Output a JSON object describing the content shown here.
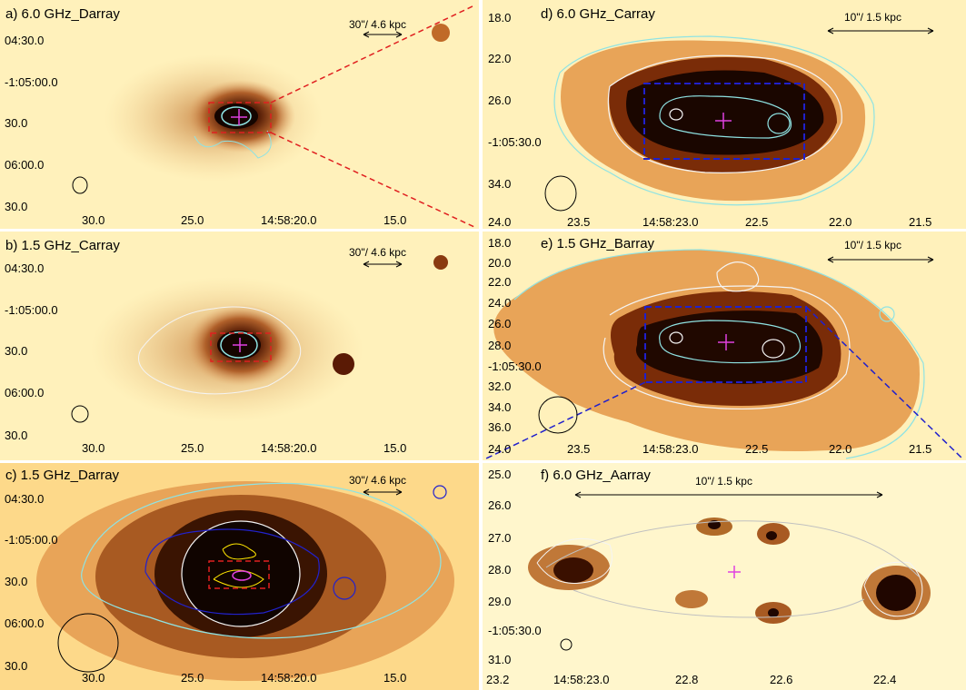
{
  "panels": {
    "a": {
      "title": "a) 6.0 GHz_Darray",
      "scalebar": "30\"/ 4.6 kpc",
      "yticks": [
        "04:30.0",
        "-1:05:00.0",
        "30.0",
        "06:00.0",
        "30.0"
      ],
      "xticks": [
        "30.0",
        "25.0",
        "14:58:20.0",
        "15.0"
      ]
    },
    "b": {
      "title": "b) 1.5 GHz_Carray",
      "scalebar": "30\"/ 4.6 kpc",
      "yticks": [
        "04:30.0",
        "-1:05:00.0",
        "30.0",
        "06:00.0",
        "30.0"
      ],
      "xticks": [
        "30.0",
        "25.0",
        "14:58:20.0",
        "15.0"
      ]
    },
    "c": {
      "title": "c) 1.5 GHz_Darray",
      "scalebar": "30\"/ 4.6 kpc",
      "yticks": [
        "04:30.0",
        "-1:05:00.0",
        "30.0",
        "06:00.0",
        "30.0"
      ],
      "xticks": [
        "30.0",
        "25.0",
        "14:58:20.0",
        "15.0"
      ]
    },
    "d": {
      "title": "d) 6.0 GHz_Carray",
      "scalebar": "10\"/ 1.5 kpc",
      "yticks": [
        "18.0",
        "22.0",
        "26.0",
        "-1:05:30.0",
        "34.0"
      ],
      "xticks": [
        "24.0",
        "23.5",
        "14:58:23.0",
        "22.5",
        "22.0",
        "21.5"
      ]
    },
    "e": {
      "title": "e) 1.5 GHz_Barray",
      "scalebar": "10\"/ 1.5 kpc",
      "yticks": [
        "18.0",
        "20.0",
        "22.0",
        "24.0",
        "26.0",
        "28.0",
        "-1:05:30.0",
        "32.0",
        "34.0",
        "36.0"
      ],
      "xticks": [
        "24.0",
        "23.5",
        "14:58:23.0",
        "22.5",
        "22.0",
        "21.5"
      ]
    },
    "f": {
      "title": "f) 6.0 GHz_Aarray",
      "scalebar": "10\"/ 1.5 kpc",
      "yticks": [
        "25.0",
        "26.0",
        "27.0",
        "28.0",
        "29.0",
        "-1:05:30.0",
        "31.0"
      ],
      "xticks": [
        "23.2",
        "14:58:23.0",
        "22.8",
        "22.6",
        "22.4"
      ]
    }
  },
  "colors": {
    "background": "#fff0b4",
    "mid": "#c87832",
    "dark": "#1e0a00",
    "contour_cyan": "#8fe3e3",
    "contour_white": "#f4f4f4",
    "contour_yellow": "#ffe600",
    "contour_blue": "#2222cc",
    "box_red": "#e02020",
    "box_blue": "#2020cc",
    "cross": "#e040e0"
  }
}
